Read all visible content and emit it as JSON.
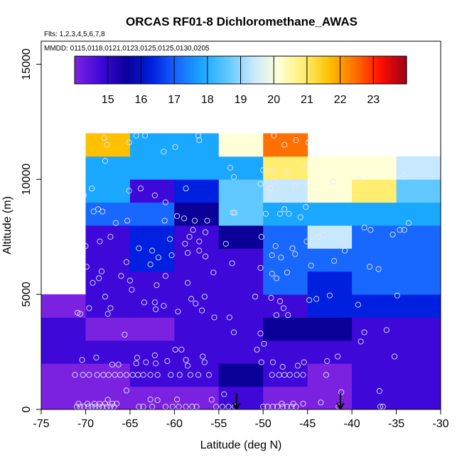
{
  "chart_data": {
    "type": "heatmap",
    "title": "ORCAS RF01-8 Dichloromethane_AWAS",
    "flights_note": "Flts: 1,2,3,4,5,6,7,8",
    "dates_note": "MMDD: 0115,0118,0121,0123,0125,0125,0130,0205",
    "xlabel": "Latitude (deg N)",
    "ylabel": "Altitude (m)",
    "xlim": [
      -75,
      -30
    ],
    "ylim": [
      0,
      16000
    ],
    "x_ticks": [
      -75,
      -70,
      -65,
      -60,
      -55,
      -50,
      -45,
      -40,
      -35,
      -30
    ],
    "y_ticks": [
      0,
      5000,
      10000,
      15000
    ],
    "colorbar": {
      "min": 14,
      "max": 24,
      "ticks": [
        15,
        16,
        17,
        18,
        19,
        20,
        21,
        22,
        23
      ],
      "colors": [
        "#7b22e0",
        "#3d08d8",
        "#0b0098",
        "#0020e0",
        "#1868ff",
        "#1aa8ff",
        "#60c8ff",
        "#c8e8ff",
        "#ffffd8",
        "#ffee70",
        "#ffc000",
        "#ff7000",
        "#ff1000",
        "#a00018"
      ]
    },
    "cell_size": {
      "lat": 5,
      "alt_m": 1000
    },
    "cells": [
      {
        "lat": -75,
        "alt": 0,
        "v": 14.6
      },
      {
        "lat": -75,
        "alt": 1000,
        "v": 14.6
      },
      {
        "lat": -75,
        "alt": 2000,
        "v": 14.8
      },
      {
        "lat": -75,
        "alt": 3000,
        "v": 14.8
      },
      {
        "lat": -75,
        "alt": 4000,
        "v": 14.6
      },
      {
        "lat": -70,
        "alt": 0,
        "v": 14.7
      },
      {
        "lat": -70,
        "alt": 1000,
        "v": 14.6
      },
      {
        "lat": -70,
        "alt": 2000,
        "v": 14.8
      },
      {
        "lat": -70,
        "alt": 3000,
        "v": 14.5
      },
      {
        "lat": -70,
        "alt": 4000,
        "v": 14.8
      },
      {
        "lat": -70,
        "alt": 5000,
        "v": 15.2
      },
      {
        "lat": -70,
        "alt": 6000,
        "v": 15.3
      },
      {
        "lat": -70,
        "alt": 7000,
        "v": 15.2
      },
      {
        "lat": -70,
        "alt": 8000,
        "v": 17.3
      },
      {
        "lat": -70,
        "alt": 9000,
        "v": 17.6
      },
      {
        "lat": -70,
        "alt": 10000,
        "v": 17.9
      },
      {
        "lat": -70,
        "alt": 11000,
        "v": 21.3
      },
      {
        "lat": -65,
        "alt": 0,
        "v": 14.7
      },
      {
        "lat": -65,
        "alt": 1000,
        "v": 14.9
      },
      {
        "lat": -65,
        "alt": 2000,
        "v": 14.8
      },
      {
        "lat": -65,
        "alt": 3000,
        "v": 14.5
      },
      {
        "lat": -65,
        "alt": 4000,
        "v": 15.1
      },
      {
        "lat": -65,
        "alt": 5000,
        "v": 15.1
      },
      {
        "lat": -65,
        "alt": 6000,
        "v": 16.6
      },
      {
        "lat": -65,
        "alt": 7000,
        "v": 16.3
      },
      {
        "lat": -65,
        "alt": 8000,
        "v": 17.3
      },
      {
        "lat": -65,
        "alt": 9000,
        "v": 15.3
      },
      {
        "lat": -65,
        "alt": 10000,
        "v": 17.9
      },
      {
        "lat": -65,
        "alt": 11000,
        "v": 17.6
      },
      {
        "lat": -60,
        "alt": 0,
        "v": 14.7
      },
      {
        "lat": -60,
        "alt": 1000,
        "v": 14.9
      },
      {
        "lat": -60,
        "alt": 2000,
        "v": 15.0
      },
      {
        "lat": -60,
        "alt": 3000,
        "v": 14.9
      },
      {
        "lat": -60,
        "alt": 4000,
        "v": 15.2
      },
      {
        "lat": -60,
        "alt": 5000,
        "v": 15.3
      },
      {
        "lat": -60,
        "alt": 6000,
        "v": 15.3
      },
      {
        "lat": -60,
        "alt": 7000,
        "v": 15.2
      },
      {
        "lat": -60,
        "alt": 8000,
        "v": 15.8
      },
      {
        "lat": -60,
        "alt": 9000,
        "v": 16.6
      },
      {
        "lat": -60,
        "alt": 10000,
        "v": 17.9
      },
      {
        "lat": -60,
        "alt": 11000,
        "v": 17.7
      },
      {
        "lat": -55,
        "alt": 0,
        "v": 14.9
      },
      {
        "lat": -55,
        "alt": 1000,
        "v": 15.9
      },
      {
        "lat": -55,
        "alt": 2000,
        "v": 15.0
      },
      {
        "lat": -55,
        "alt": 3000,
        "v": 15.0
      },
      {
        "lat": -55,
        "alt": 4000,
        "v": 15.1
      },
      {
        "lat": -55,
        "alt": 5000,
        "v": 15.4
      },
      {
        "lat": -55,
        "alt": 6000,
        "v": 15.1
      },
      {
        "lat": -55,
        "alt": 7000,
        "v": 15.8
      },
      {
        "lat": -55,
        "alt": 8000,
        "v": 18.8
      },
      {
        "lat": -55,
        "alt": 9000,
        "v": 18.4
      },
      {
        "lat": -55,
        "alt": 10000,
        "v": 17.9
      },
      {
        "lat": -55,
        "alt": 11000,
        "v": 19.8
      },
      {
        "lat": -50,
        "alt": 0,
        "v": 14.6
      },
      {
        "lat": -50,
        "alt": 1000,
        "v": 14.8
      },
      {
        "lat": -50,
        "alt": 2000,
        "v": 14.8
      },
      {
        "lat": -50,
        "alt": 3000,
        "v": 16.0
      },
      {
        "lat": -50,
        "alt": 4000,
        "v": 15.2
      },
      {
        "lat": -50,
        "alt": 5000,
        "v": 17.2
      },
      {
        "lat": -50,
        "alt": 6000,
        "v": 17.0
      },
      {
        "lat": -50,
        "alt": 7000,
        "v": 16.9
      },
      {
        "lat": -50,
        "alt": 8000,
        "v": 17.6
      },
      {
        "lat": -50,
        "alt": 9000,
        "v": 19.6
      },
      {
        "lat": -50,
        "alt": 10000,
        "v": 20.6
      },
      {
        "lat": -50,
        "alt": 11000,
        "v": 22.5
      },
      {
        "lat": -45,
        "alt": 0,
        "v": 14.0
      },
      {
        "lat": -45,
        "alt": 1000,
        "v": 14.3
      },
      {
        "lat": -45,
        "alt": 2000,
        "v": 14.9
      },
      {
        "lat": -45,
        "alt": 3000,
        "v": 15.7
      },
      {
        "lat": -45,
        "alt": 4000,
        "v": 16.3
      },
      {
        "lat": -45,
        "alt": 5000,
        "v": 16.6
      },
      {
        "lat": -45,
        "alt": 6000,
        "v": 17.0
      },
      {
        "lat": -45,
        "alt": 7000,
        "v": 19.1
      },
      {
        "lat": -45,
        "alt": 8000,
        "v": 17.6
      },
      {
        "lat": -45,
        "alt": 9000,
        "v": 19.9
      },
      {
        "lat": -45,
        "alt": 10000,
        "v": 20.4
      },
      {
        "lat": -40,
        "alt": 0,
        "v": 14.8
      },
      {
        "lat": -40,
        "alt": 1000,
        "v": 15.2
      },
      {
        "lat": -40,
        "alt": 2000,
        "v": 15.4
      },
      {
        "lat": -40,
        "alt": 3000,
        "v": 15.3
      },
      {
        "lat": -40,
        "alt": 4000,
        "v": 16.3
      },
      {
        "lat": -40,
        "alt": 5000,
        "v": 17.3
      },
      {
        "lat": -40,
        "alt": 6000,
        "v": 17.1
      },
      {
        "lat": -40,
        "alt": 7000,
        "v": 17.1
      },
      {
        "lat": -40,
        "alt": 8000,
        "v": 17.6
      },
      {
        "lat": -40,
        "alt": 9000,
        "v": 20.6
      },
      {
        "lat": -40,
        "alt": 10000,
        "v": 19.9
      },
      {
        "lat": -35,
        "alt": 0,
        "v": 14.9
      },
      {
        "lat": -35,
        "alt": 1000,
        "v": 15.2
      },
      {
        "lat": -35,
        "alt": 2000,
        "v": 15.4
      },
      {
        "lat": -35,
        "alt": 3000,
        "v": 15.4
      },
      {
        "lat": -35,
        "alt": 4000,
        "v": 16.3
      },
      {
        "lat": -35,
        "alt": 5000,
        "v": 16.9
      },
      {
        "lat": -35,
        "alt": 6000,
        "v": 17.1
      },
      {
        "lat": -35,
        "alt": 7000,
        "v": 17.1
      },
      {
        "lat": -35,
        "alt": 8000,
        "v": 17.6
      },
      {
        "lat": -35,
        "alt": 9000,
        "v": 18.6
      },
      {
        "lat": -35,
        "alt": 10000,
        "v": 19.5
      }
    ],
    "samples": [
      [
        -71.0,
        120
      ],
      [
        -70.6,
        120
      ],
      [
        -70.2,
        120
      ],
      [
        -69.7,
        120
      ],
      [
        -69.3,
        120
      ],
      [
        -68.9,
        120
      ],
      [
        -68.5,
        120
      ],
      [
        -68.1,
        120
      ],
      [
        -67.6,
        120
      ],
      [
        -67.2,
        120
      ],
      [
        -66.8,
        120
      ],
      [
        -64.0,
        120
      ],
      [
        -63.5,
        120
      ],
      [
        -62.5,
        120
      ],
      [
        -61.0,
        120
      ],
      [
        -60.2,
        120
      ],
      [
        -59.5,
        120
      ],
      [
        -58.7,
        120
      ],
      [
        -58.0,
        120
      ],
      [
        -57.5,
        120
      ],
      [
        -55.3,
        120
      ],
      [
        -54.6,
        120
      ],
      [
        -53.9,
        120
      ],
      [
        -53.2,
        120
      ],
      [
        -50.0,
        120
      ],
      [
        -49.5,
        120
      ],
      [
        -48.9,
        120
      ],
      [
        -48.4,
        120
      ],
      [
        -47.8,
        120
      ],
      [
        -47.3,
        120
      ],
      [
        -46.8,
        120
      ],
      [
        -46.3,
        120
      ],
      [
        -41.5,
        120
      ],
      [
        -36.8,
        120
      ],
      [
        -36.5,
        120
      ],
      [
        -70.8,
        250
      ],
      [
        -69.8,
        250
      ],
      [
        -69.0,
        250
      ],
      [
        -68.4,
        250
      ],
      [
        -67.8,
        250
      ],
      [
        -67.0,
        250
      ],
      [
        -66.5,
        250
      ],
      [
        -47.9,
        250
      ],
      [
        -46.6,
        250
      ],
      [
        -45.5,
        250
      ],
      [
        -43.5,
        300
      ],
      [
        -67.5,
        420
      ],
      [
        -62.7,
        430
      ],
      [
        -61.9,
        400
      ],
      [
        -59.7,
        430
      ],
      [
        -55.8,
        420
      ],
      [
        -54.4,
        660
      ],
      [
        -65.4,
        820
      ],
      [
        -41.2,
        750
      ],
      [
        -36.9,
        800
      ],
      [
        -71.2,
        1500
      ],
      [
        -70.3,
        1500
      ],
      [
        -69.6,
        1500
      ],
      [
        -68.7,
        1500
      ],
      [
        -68.0,
        1500
      ],
      [
        -67.4,
        1500
      ],
      [
        -66.7,
        1500
      ],
      [
        -66.1,
        1500
      ],
      [
        -65.4,
        1500
      ],
      [
        -64.7,
        1500
      ],
      [
        -64.1,
        1500
      ],
      [
        -63.5,
        1500
      ],
      [
        -62.7,
        1500
      ],
      [
        -61.9,
        1500
      ],
      [
        -60.4,
        1500
      ],
      [
        -59.4,
        1500
      ],
      [
        -58.2,
        1500
      ],
      [
        -57.3,
        1500
      ],
      [
        -56.1,
        1500
      ],
      [
        -49.0,
        1500
      ],
      [
        -48.2,
        1500
      ],
      [
        -47.6,
        1500
      ],
      [
        -47.0,
        1500
      ],
      [
        -46.2,
        1500
      ],
      [
        -45.5,
        1500
      ],
      [
        -42.9,
        1500
      ],
      [
        -67.0,
        1950
      ],
      [
        -66.3,
        1950
      ],
      [
        -64.3,
        2000
      ],
      [
        -63.2,
        2050
      ],
      [
        -62.1,
        2000
      ],
      [
        -60.8,
        2100
      ],
      [
        -58.5,
        1900
      ],
      [
        -56.6,
        2050
      ],
      [
        -50.2,
        2050
      ],
      [
        -48.9,
        2050
      ],
      [
        -47.8,
        1850
      ],
      [
        -46.1,
        1900
      ],
      [
        -45.4,
        2050
      ],
      [
        -42.8,
        2100
      ],
      [
        -41.6,
        2300
      ],
      [
        -35.2,
        2300
      ],
      [
        -70.4,
        2150
      ],
      [
        -68.8,
        2250
      ],
      [
        -64.2,
        2250
      ],
      [
        -62.2,
        2350
      ],
      [
        -59.9,
        2600
      ],
      [
        -59.2,
        2600
      ],
      [
        -58.7,
        2150
      ],
      [
        -56.8,
        2300
      ],
      [
        -50.7,
        2600
      ],
      [
        -49.9,
        2850
      ],
      [
        -39.0,
        2950
      ],
      [
        -65.6,
        3250
      ],
      [
        -53.3,
        3350
      ],
      [
        -50.3,
        3300
      ],
      [
        -36.1,
        3450
      ],
      [
        -38.6,
        3350
      ],
      [
        -70.9,
        4200
      ],
      [
        -70.6,
        4150
      ],
      [
        -69.6,
        4400
      ],
      [
        -67.5,
        4150
      ],
      [
        -67.8,
        4900
      ],
      [
        -67.2,
        4400
      ],
      [
        -64.8,
        5200
      ],
      [
        -63.4,
        4650
      ],
      [
        -62.1,
        4350
      ],
      [
        -62.2,
        4650
      ],
      [
        -61.2,
        4500
      ],
      [
        -59.6,
        4250
      ],
      [
        -58.1,
        4800
      ],
      [
        -57.6,
        4600
      ],
      [
        -56.9,
        4300
      ],
      [
        -56.6,
        4900
      ],
      [
        -55.5,
        4000
      ],
      [
        -53.8,
        4000
      ],
      [
        -50.9,
        4900
      ],
      [
        -49.1,
        4850
      ],
      [
        -48.5,
        4100
      ],
      [
        -48.1,
        4700
      ],
      [
        -47.7,
        4400
      ],
      [
        -47.2,
        4100
      ],
      [
        -44.8,
        4750
      ],
      [
        -44.0,
        4800
      ],
      [
        -42.5,
        4950
      ],
      [
        -39.3,
        4550
      ],
      [
        -34.9,
        4950
      ],
      [
        -69.2,
        5500
      ],
      [
        -68.5,
        5700
      ],
      [
        -66.0,
        5800
      ],
      [
        -65.0,
        5600
      ],
      [
        -62.0,
        5400
      ],
      [
        -61.0,
        5800
      ],
      [
        -58.5,
        5500
      ],
      [
        -55.6,
        5950
      ],
      [
        -50.3,
        6150
      ],
      [
        -49.0,
        5900
      ],
      [
        -48.5,
        5700
      ],
      [
        -47.3,
        5950
      ],
      [
        -44.6,
        6250
      ],
      [
        -42.0,
        6450
      ],
      [
        -40.8,
        6900
      ],
      [
        -69.9,
        6200
      ],
      [
        -68.2,
        6000
      ],
      [
        -65.4,
        6400
      ],
      [
        -62.7,
        6300
      ],
      [
        -61.8,
        6600
      ],
      [
        -60.3,
        6700
      ],
      [
        -58.5,
        6800
      ],
      [
        -57.2,
        6900
      ],
      [
        -56.5,
        6650
      ],
      [
        -53.5,
        6350
      ],
      [
        -49.0,
        6700
      ],
      [
        -48.0,
        6600
      ],
      [
        -46.4,
        6750
      ],
      [
        -38.0,
        6200
      ],
      [
        -37.0,
        6100
      ],
      [
        -70.0,
        7100
      ],
      [
        -68.4,
        7300
      ],
      [
        -67.2,
        7500
      ],
      [
        -64.0,
        7000
      ],
      [
        -62.5,
        6900
      ],
      [
        -60.5,
        7400
      ],
      [
        -58.8,
        7200
      ],
      [
        -58.3,
        7500
      ],
      [
        -57.2,
        7300
      ],
      [
        -56.5,
        7700
      ],
      [
        -54.2,
        7200
      ],
      [
        -50.2,
        7500
      ],
      [
        -48.6,
        7100
      ],
      [
        -46.7,
        7000
      ],
      [
        -45.1,
        7300
      ],
      [
        -43.8,
        7500
      ],
      [
        -43.2,
        7600
      ],
      [
        -38.6,
        7900
      ],
      [
        -37.9,
        7800
      ],
      [
        -35.4,
        7600
      ],
      [
        -34.6,
        7800
      ],
      [
        -34.1,
        7800
      ],
      [
        -33.6,
        8100
      ],
      [
        -69.1,
        8600
      ],
      [
        -68.6,
        8700
      ],
      [
        -68.1,
        8600
      ],
      [
        -66.6,
        8100
      ],
      [
        -65.3,
        8200
      ],
      [
        -61.1,
        8200
      ],
      [
        -59.7,
        8400
      ],
      [
        -58.9,
        8300
      ],
      [
        -57.7,
        8200
      ],
      [
        -57.9,
        7800
      ],
      [
        -56.3,
        8200
      ],
      [
        -53.4,
        8550
      ],
      [
        -53.2,
        8550
      ],
      [
        -49.7,
        8500
      ],
      [
        -48.1,
        8500
      ],
      [
        -47.6,
        8700
      ],
      [
        -47.1,
        8500
      ],
      [
        -45.8,
        8350
      ],
      [
        -45.2,
        8800
      ],
      [
        -70.2,
        9300
      ],
      [
        -69.3,
        9600
      ],
      [
        -65.1,
        9500
      ],
      [
        -63.8,
        9600
      ],
      [
        -62.2,
        9300
      ],
      [
        -61.0,
        9000
      ],
      [
        -58.7,
        9600
      ],
      [
        -50.3,
        9800
      ],
      [
        -49.2,
        9600
      ],
      [
        -48.8,
        9900
      ],
      [
        -46.4,
        9700
      ],
      [
        -45.0,
        9800
      ],
      [
        -42.1,
        9900
      ],
      [
        -39.3,
        10000
      ],
      [
        -34.2,
        10150
      ],
      [
        -67.8,
        10800
      ],
      [
        -53.7,
        10500
      ],
      [
        -53.3,
        10100
      ],
      [
        -50.0,
        10400
      ],
      [
        -49.0,
        10400
      ],
      [
        -47.4,
        10300
      ],
      [
        -45.2,
        10550
      ],
      [
        -67.6,
        11500
      ],
      [
        -67.9,
        11800
      ],
      [
        -65.1,
        11600
      ],
      [
        -64.3,
        11900
      ],
      [
        -63.3,
        11900
      ],
      [
        -61.2,
        11200
      ],
      [
        -59.9,
        11400
      ],
      [
        -57.2,
        11700
      ],
      [
        -57.3,
        11900
      ],
      [
        -48.8,
        11900
      ],
      [
        -47.6,
        11500
      ],
      [
        -46.3,
        11700
      ],
      [
        -44.9,
        11600
      ]
    ],
    "arrows": [
      {
        "lat": -53.0,
        "alt_top": 700,
        "alt_bottom": 0
      },
      {
        "lat": -41.3,
        "alt_top": 700,
        "alt_bottom": 0
      }
    ]
  }
}
